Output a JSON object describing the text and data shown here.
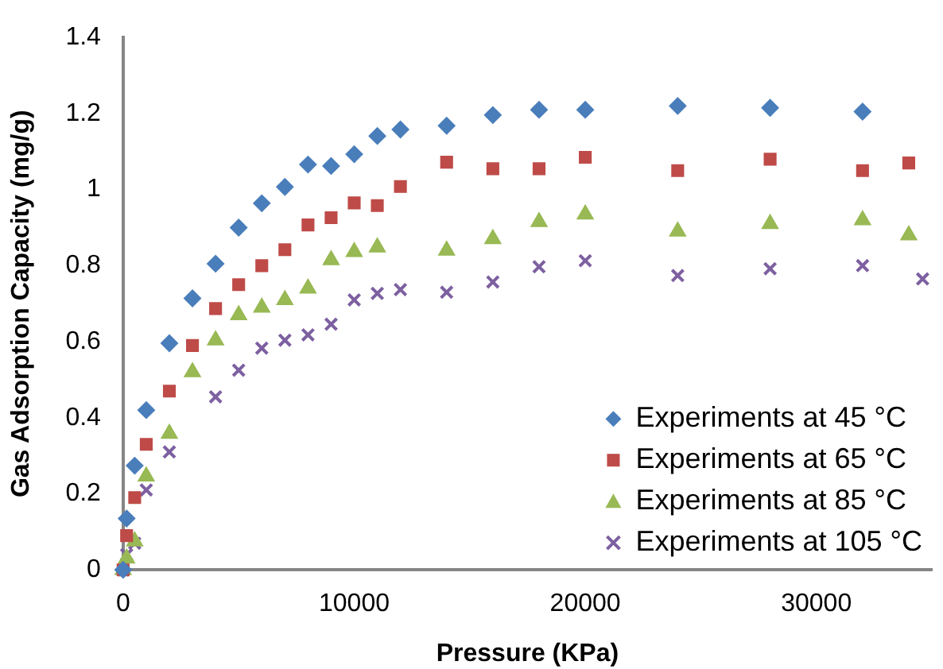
{
  "chart_data": {
    "type": "scatter",
    "xlabel": "Pressure (KPa)",
    "ylabel": "Gas Adsorption Capacity (mg/g)",
    "xlim": [
      0,
      35000
    ],
    "ylim": [
      0,
      1.4
    ],
    "xticks": [
      0,
      10000,
      20000,
      30000
    ],
    "yticks": [
      0,
      0.2,
      0.4,
      0.6,
      0.8,
      1,
      1.2,
      1.4
    ],
    "grid": false,
    "legend": "bottom right",
    "series": [
      {
        "name": "Experiments at 45 °C",
        "color": "#4a7ebb",
        "marker": "diamond",
        "x": [
          0,
          150,
          500,
          1000,
          2000,
          3000,
          4000,
          5000,
          6000,
          7000,
          8000,
          9000,
          10000,
          11000,
          12000,
          14000,
          16000,
          18000,
          20000,
          24000,
          28000,
          32000
        ],
        "values": [
          0,
          0.135,
          0.274,
          0.42,
          0.596,
          0.714,
          0.805,
          0.9,
          0.964,
          1.007,
          1.066,
          1.062,
          1.093,
          1.141,
          1.158,
          1.168,
          1.196,
          1.21,
          1.21,
          1.22,
          1.215,
          1.205
        ]
      },
      {
        "name": "Experiments at 65 °C",
        "color": "#be4b48",
        "marker": "square",
        "x": [
          0,
          150,
          500,
          1000,
          2000,
          3000,
          4000,
          5000,
          6000,
          7000,
          8000,
          9000,
          10000,
          11000,
          12000,
          14000,
          16000,
          18000,
          20000,
          24000,
          28000,
          32000,
          34000
        ],
        "values": [
          0,
          0.09,
          0.19,
          0.33,
          0.47,
          0.59,
          0.687,
          0.75,
          0.8,
          0.842,
          0.907,
          0.926,
          0.965,
          0.958,
          1.008,
          1.072,
          1.055,
          1.055,
          1.085,
          1.05,
          1.08,
          1.05,
          1.07
        ]
      },
      {
        "name": "Experiments at 85 °C",
        "color": "#98b954",
        "marker": "triangle",
        "x": [
          0,
          150,
          500,
          1000,
          2000,
          3000,
          4000,
          5000,
          6000,
          7000,
          8000,
          9000,
          10000,
          11000,
          14000,
          16000,
          18000,
          20000,
          24000,
          28000,
          32000,
          34000
        ],
        "values": [
          0,
          0.03,
          0.075,
          0.246,
          0.358,
          0.52,
          0.604,
          0.67,
          0.69,
          0.71,
          0.74,
          0.815,
          0.836,
          0.848,
          0.84,
          0.87,
          0.915,
          0.935,
          0.89,
          0.91,
          0.92,
          0.88
        ]
      },
      {
        "name": "Experiments at 105 °C",
        "color": "#7d60a0",
        "marker": "cross",
        "x": [
          0,
          150,
          500,
          1000,
          2000,
          4000,
          5000,
          6000,
          7000,
          8000,
          9000,
          10000,
          11000,
          12000,
          14000,
          16000,
          18000,
          20000,
          24000,
          28000,
          32000,
          34600
        ],
        "values": [
          0,
          0.04,
          0.07,
          0.21,
          0.31,
          0.455,
          0.525,
          0.583,
          0.604,
          0.618,
          0.646,
          0.71,
          0.727,
          0.737,
          0.73,
          0.757,
          0.797,
          0.813,
          0.774,
          0.792,
          0.8,
          0.765
        ]
      }
    ]
  }
}
